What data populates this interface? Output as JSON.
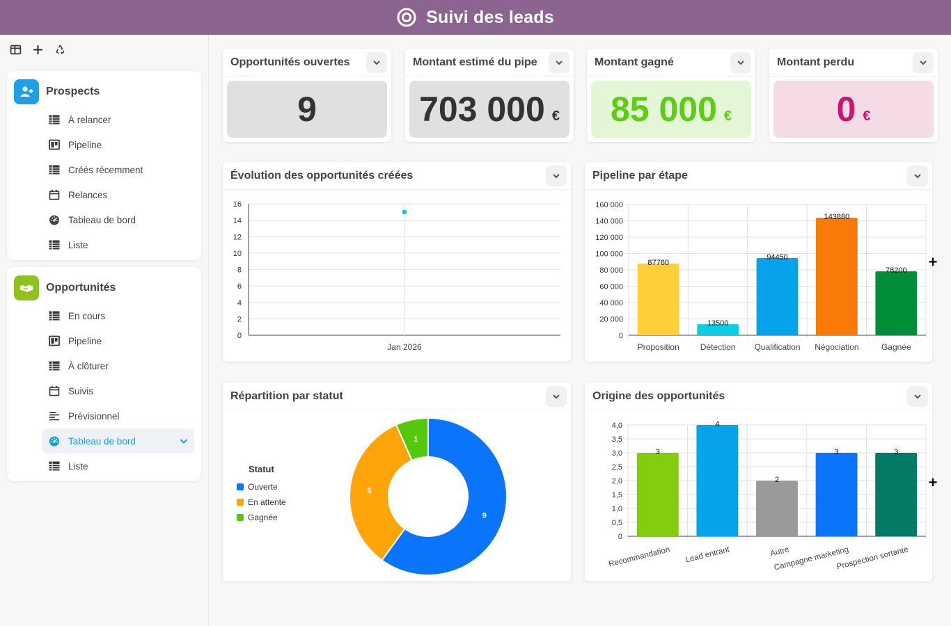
{
  "app": {
    "title": "Suivi des leads"
  },
  "toolbar": {
    "icons": [
      "layout-icon",
      "plus-icon",
      "recycle-icon"
    ]
  },
  "sidebar": {
    "prospects": {
      "title": "Prospects",
      "color": "#1ea0e8",
      "items": [
        {
          "label": "À relancer",
          "icon": "table-icon"
        },
        {
          "label": "Pipeline",
          "icon": "kanban-icon"
        },
        {
          "label": "Créés récemment",
          "icon": "table-icon"
        },
        {
          "label": "Relances",
          "icon": "calendar-icon"
        },
        {
          "label": "Tableau de bord",
          "icon": "gauge-icon"
        },
        {
          "label": "Liste",
          "icon": "table-icon"
        }
      ]
    },
    "opportunites": {
      "title": "Opportunités",
      "color": "#8dc21f",
      "items": [
        {
          "label": "En cours",
          "icon": "table-icon"
        },
        {
          "label": "Pipeline",
          "icon": "kanban-icon"
        },
        {
          "label": "À clôturer",
          "icon": "table-icon"
        },
        {
          "label": "Suivis",
          "icon": "calendar-icon"
        },
        {
          "label": "Prévisionnel",
          "icon": "lines-icon"
        },
        {
          "label": "Tableau de bord",
          "icon": "gauge-icon",
          "active": true
        },
        {
          "label": "Liste",
          "icon": "table-icon"
        }
      ]
    }
  },
  "kpis": [
    {
      "title": "Opportunités ouvertes",
      "value": "9",
      "unit": "",
      "bg": "#e0e0e0",
      "color": "#333333"
    },
    {
      "title": "Montant estimé du pipe",
      "value": "703 000",
      "unit": "€",
      "bg": "#e0e0e0",
      "color": "#333333"
    },
    {
      "title": "Montant gagné",
      "value": "85 000",
      "unit": "€",
      "bg": "#e3f6d6",
      "color": "#5ccc14"
    },
    {
      "title": "Montant perdu",
      "value": "0",
      "unit": "€",
      "bg": "#f5dbe5",
      "color": "#cc1470"
    }
  ],
  "charts": {
    "evolution": {
      "title": "Évolution des opportunités créées"
    },
    "pipeline": {
      "title": "Pipeline par étape"
    },
    "repartition": {
      "title": "Répartition par statut"
    },
    "origine": {
      "title": "Origine des opportunités"
    }
  },
  "chart_data": [
    {
      "type": "line",
      "title": "Évolution des opportunités créées",
      "x": [
        "Jan 2026"
      ],
      "series": [
        {
          "values": [
            15
          ]
        }
      ],
      "ylim": [
        0,
        16
      ],
      "yticks": [
        0,
        2,
        4,
        6,
        8,
        10,
        12,
        14,
        16
      ],
      "color": "#1ec5e6",
      "grid": true
    },
    {
      "type": "bar",
      "title": "Pipeline par étape",
      "categories": [
        "Proposition",
        "Détection",
        "Qualification",
        "Négociation",
        "Gagnée"
      ],
      "values": [
        87760,
        13500,
        94450,
        143880,
        78200
      ],
      "colors": [
        "#ffcf3a",
        "#0ccde4",
        "#06a2ea",
        "#f97a07",
        "#028d39"
      ],
      "ylim": [
        0,
        160000
      ],
      "yticks": [
        "0",
        "20 000",
        "40 000",
        "60 000",
        "80 000",
        "100 000",
        "120 000",
        "140 000",
        "160 000"
      ],
      "grid": true
    },
    {
      "type": "pie",
      "title": "Répartition par statut",
      "legend_title": "Statut",
      "legend_position": "left",
      "labels": [
        "Ouverte",
        "En attente",
        "Gagnée"
      ],
      "values": [
        9,
        5,
        1
      ],
      "colors": [
        "#0a74fb",
        "#ffa50a",
        "#55c80c"
      ]
    },
    {
      "type": "bar",
      "title": "Origine des opportunités",
      "categories": [
        "Recommandation",
        "Lead entrant",
        "Autre",
        "Campagne marketing",
        "Prospection sortante"
      ],
      "values": [
        3,
        4,
        2,
        3,
        3
      ],
      "colors": [
        "#84cc0e",
        "#06a2ea",
        "#9a9a9a",
        "#0a74fb",
        "#027a64"
      ],
      "ylim": [
        0,
        4
      ],
      "yticks": [
        "0",
        "0,5",
        "1,0",
        "1,5",
        "2,0",
        "2,5",
        "3,0",
        "3,5",
        "4,0"
      ],
      "grid": true
    }
  ]
}
